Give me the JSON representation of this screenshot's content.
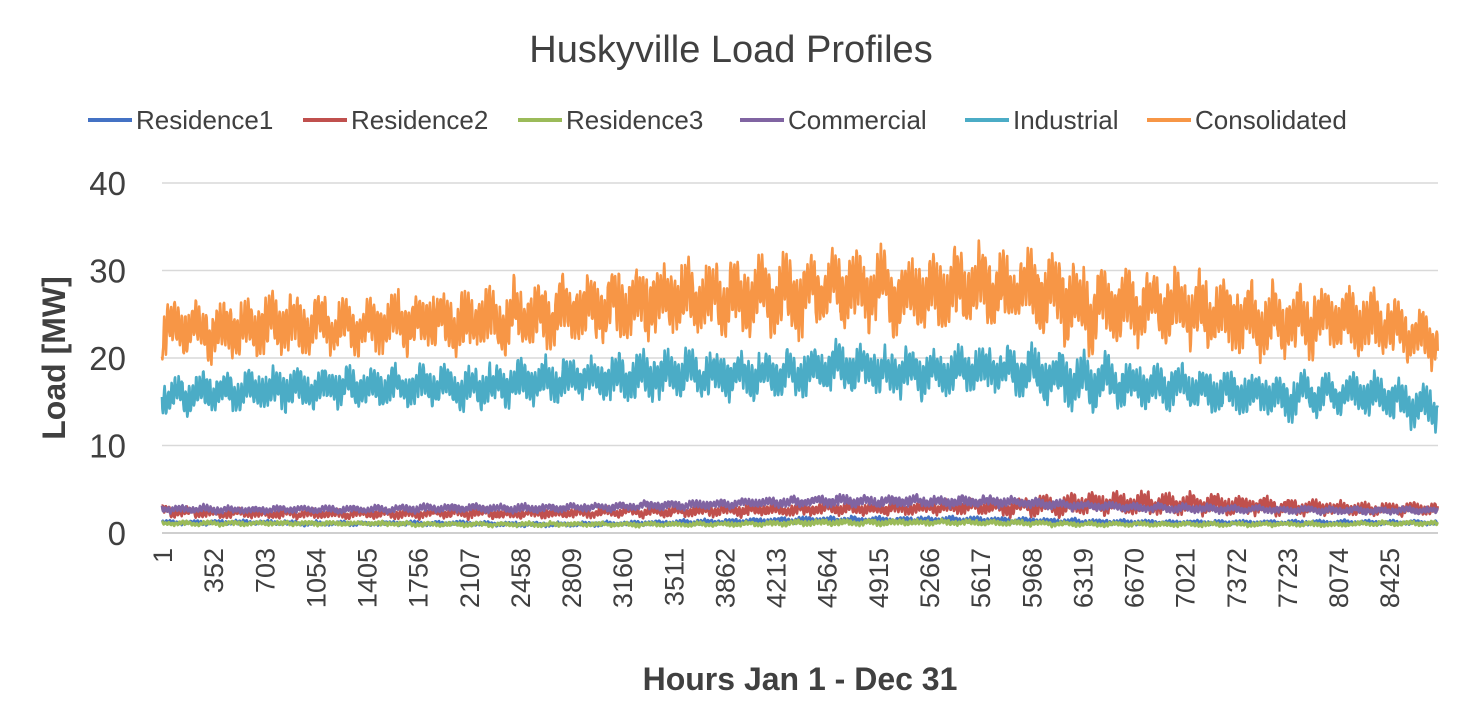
{
  "chart_data": {
    "type": "line",
    "title": "Huskyville Load Profiles",
    "xlabel": "Hours Jan 1 - Dec 31",
    "ylabel": "Load [MW]",
    "ylim": [
      0,
      40
    ],
    "yticks": [
      "0",
      "10",
      "20",
      "30",
      "40"
    ],
    "xlim": [
      1,
      8760
    ],
    "xticks": [
      "1",
      "352",
      "703",
      "1054",
      "1405",
      "1756",
      "2107",
      "2458",
      "2809",
      "3160",
      "3511",
      "3862",
      "4213",
      "4564",
      "4915",
      "5266",
      "5617",
      "5968",
      "6319",
      "6670",
      "7021",
      "7372",
      "7723",
      "8074",
      "8425"
    ],
    "grid": true,
    "legend_position": "top",
    "series": [
      {
        "name": "Residence1",
        "color": "#4472c4",
        "hours": [
          1,
          352,
          703,
          1054,
          1405,
          1756,
          2107,
          2458,
          2809,
          3160,
          3511,
          3862,
          4213,
          4564,
          4915,
          5266,
          5617,
          5968,
          6319,
          6670,
          7021,
          7372,
          7723,
          8074,
          8425,
          8760
        ],
        "base": [
          1.2,
          1.2,
          1.2,
          1.1,
          1.1,
          1.1,
          1.1,
          1.0,
          1.0,
          1.1,
          1.2,
          1.3,
          1.4,
          1.5,
          1.5,
          1.5,
          1.5,
          1.4,
          1.3,
          1.2,
          1.2,
          1.2,
          1.2,
          1.2,
          1.2,
          1.2
        ],
        "spread": [
          0.5,
          0.5,
          0.5,
          0.5,
          0.5,
          0.5,
          0.5,
          0.5,
          0.5,
          0.5,
          0.6,
          0.6,
          0.7,
          0.7,
          0.7,
          0.7,
          0.7,
          0.7,
          0.6,
          0.6,
          0.5,
          0.5,
          0.5,
          0.5,
          0.5,
          0.5
        ]
      },
      {
        "name": "Residence2",
        "color": "#c0504d",
        "hours": [
          1,
          352,
          703,
          1054,
          1405,
          1756,
          2107,
          2458,
          2809,
          3160,
          3511,
          3862,
          4213,
          4564,
          4915,
          5266,
          5617,
          5968,
          6319,
          6670,
          7021,
          7372,
          7723,
          8074,
          8425,
          8760
        ],
        "base": [
          2.5,
          2.3,
          2.2,
          2.2,
          2.2,
          2.2,
          2.3,
          2.2,
          2.3,
          2.4,
          2.5,
          2.6,
          2.7,
          2.8,
          2.8,
          2.9,
          3.0,
          3.1,
          3.3,
          3.4,
          3.4,
          3.2,
          3.0,
          2.8,
          2.7,
          2.8
        ],
        "spread": [
          1.2,
          1.0,
          1.0,
          1.0,
          1.0,
          1.0,
          1.1,
          1.0,
          1.1,
          1.1,
          1.2,
          1.3,
          1.4,
          1.5,
          1.5,
          1.5,
          1.6,
          2.0,
          2.4,
          2.4,
          2.3,
          2.1,
          1.7,
          1.5,
          1.4,
          1.5
        ]
      },
      {
        "name": "Residence3",
        "color": "#9bbb59",
        "hours": [
          1,
          352,
          703,
          1054,
          1405,
          1756,
          2107,
          2458,
          2809,
          3160,
          3511,
          3862,
          4213,
          4564,
          4915,
          5266,
          5617,
          5968,
          6319,
          6670,
          7021,
          7372,
          7723,
          8074,
          8425,
          8760
        ],
        "base": [
          1.1,
          1.1,
          1.1,
          1.1,
          1.1,
          1.0,
          1.0,
          1.0,
          1.0,
          1.0,
          1.0,
          1.0,
          1.1,
          1.2,
          1.2,
          1.2,
          1.2,
          1.1,
          1.0,
          1.0,
          1.0,
          1.0,
          1.0,
          1.0,
          1.1,
          1.1
        ],
        "spread": [
          0.5,
          0.5,
          0.5,
          0.5,
          0.5,
          0.5,
          0.5,
          0.5,
          0.5,
          0.5,
          0.5,
          0.5,
          0.6,
          0.7,
          0.7,
          0.6,
          0.6,
          0.6,
          0.5,
          0.5,
          0.5,
          0.5,
          0.5,
          0.5,
          0.5,
          0.5
        ]
      },
      {
        "name": "Commercial",
        "color": "#8064a2",
        "hours": [
          1,
          352,
          703,
          1054,
          1405,
          1756,
          2107,
          2458,
          2809,
          3160,
          3511,
          3862,
          4213,
          4564,
          4915,
          5266,
          5617,
          5968,
          6319,
          6670,
          7021,
          7372,
          7723,
          8074,
          8425,
          8760
        ],
        "base": [
          2.8,
          2.7,
          2.7,
          2.7,
          2.7,
          2.8,
          2.9,
          2.8,
          2.9,
          3.0,
          3.2,
          3.3,
          3.5,
          3.7,
          3.6,
          3.6,
          3.6,
          3.4,
          3.1,
          2.9,
          2.8,
          2.7,
          2.6,
          2.6,
          2.6,
          2.6
        ],
        "spread": [
          0.9,
          0.8,
          0.8,
          0.8,
          0.8,
          0.9,
          0.9,
          0.9,
          0.9,
          0.9,
          1.0,
          1.0,
          1.1,
          1.2,
          1.2,
          1.2,
          1.2,
          1.1,
          1.0,
          0.9,
          0.9,
          0.8,
          0.8,
          0.8,
          0.8,
          0.8
        ]
      },
      {
        "name": "Industrial",
        "color": "#4bacc6",
        "hours": [
          1,
          352,
          703,
          1054,
          1405,
          1756,
          2107,
          2458,
          2809,
          3160,
          3511,
          3862,
          4213,
          4564,
          4915,
          5266,
          5617,
          5968,
          6319,
          6670,
          7021,
          7372,
          7723,
          8074,
          8425,
          8760
        ],
        "base": [
          15.5,
          16.2,
          16.3,
          16.5,
          16.8,
          16.8,
          16.5,
          17.0,
          17.5,
          17.8,
          18.2,
          18.0,
          17.8,
          18.8,
          18.5,
          18.2,
          18.8,
          18.3,
          17.2,
          17.0,
          16.8,
          16.2,
          15.5,
          16.0,
          15.5,
          14.0
        ],
        "spread": [
          4.0,
          4.2,
          4.5,
          4.2,
          4.2,
          4.2,
          4.8,
          4.6,
          4.6,
          4.8,
          5.0,
          4.8,
          4.8,
          4.8,
          4.8,
          4.8,
          5.0,
          5.0,
          6.0,
          5.0,
          4.8,
          4.6,
          4.4,
          4.4,
          4.6,
          4.0
        ]
      },
      {
        "name": "Consolidated",
        "color": "#f79646",
        "hours": [
          1,
          352,
          703,
          1054,
          1405,
          1756,
          2107,
          2458,
          2809,
          3160,
          3511,
          3862,
          4213,
          4564,
          4915,
          5266,
          5617,
          5968,
          6319,
          6670,
          7021,
          7372,
          7723,
          8074,
          8425,
          8760
        ],
        "base": [
          23.0,
          23.2,
          23.8,
          23.8,
          23.6,
          24.2,
          24.3,
          24.6,
          25.3,
          26.0,
          27.0,
          26.5,
          27.0,
          28.0,
          27.5,
          27.2,
          28.3,
          27.8,
          26.0,
          26.2,
          25.8,
          24.8,
          24.0,
          24.5,
          23.8,
          21.5
        ],
        "spread": [
          6.0,
          6.2,
          6.5,
          6.2,
          6.2,
          6.5,
          7.0,
          7.0,
          7.5,
          7.5,
          8.0,
          8.0,
          8.0,
          8.5,
          8.0,
          8.0,
          8.5,
          8.5,
          9.0,
          8.0,
          7.5,
          7.5,
          7.0,
          6.5,
          6.5,
          5.5
        ]
      }
    ]
  }
}
